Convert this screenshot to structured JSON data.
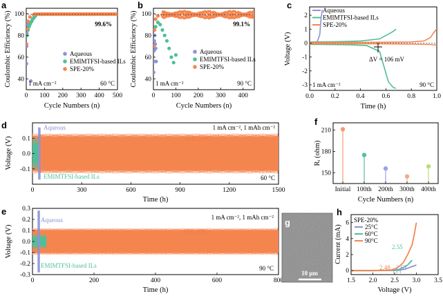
{
  "colors": {
    "aqueous": "#8b93d6",
    "ils": "#4fbf97",
    "spe": "#f5854f",
    "spe_dark": "#f07a3f",
    "bar_initial": "#f39a74",
    "bar_100": "#55c299",
    "bar_200": "#9aa3e6",
    "bar_300": "#f4a98a",
    "bar_400": "#b8de7a"
  },
  "panel_letters": {
    "a": "a",
    "b": "b",
    "c": "c",
    "d": "d",
    "e": "e",
    "f": "f",
    "g": "g",
    "h": "h"
  },
  "chart_data": [
    {
      "id": "a",
      "type": "scatter",
      "xlabel": "Cycle Numbers (n)",
      "ylabel": "Coulombic Efficiency (%)",
      "xlim": [
        0,
        500
      ],
      "ylim": [
        30,
        105
      ],
      "xticks": [
        0,
        100,
        200,
        300,
        400,
        500
      ],
      "yticks": [
        40,
        60,
        80,
        100
      ],
      "annotations": {
        "efficiency": "99.6%",
        "current": "1 mA cm⁻²",
        "temp": "60 °C"
      },
      "legend": [
        "Aqueous",
        "EMIMTFSI-based ILs",
        "SPE-20%"
      ],
      "series": [
        {
          "name": "Aqueous",
          "x": [
            1,
            2,
            3,
            5,
            8,
            12,
            18,
            25
          ],
          "y": [
            54,
            70,
            82,
            90,
            93,
            88,
            92,
            38
          ]
        },
        {
          "name": "EMIMTFSI-based ILs",
          "x": [
            5,
            10,
            15,
            20,
            25,
            30,
            35,
            40,
            45,
            50
          ],
          "y": [
            80,
            85,
            88,
            90,
            92,
            93,
            95,
            96,
            97,
            98
          ]
        },
        {
          "name": "SPE-20%",
          "x": [
            2,
            5,
            10,
            20,
            40,
            80,
            150,
            250,
            350,
            450,
            500
          ],
          "y": [
            72,
            86,
            93,
            97,
            99,
            99.5,
            99.6,
            99.6,
            99.6,
            99.6,
            99.6
          ]
        }
      ]
    },
    {
      "id": "b",
      "type": "scatter",
      "xlabel": "Cycle Numbers (n)",
      "ylabel": "Coulombic Efficiency (%)",
      "xlim": [
        0,
        450
      ],
      "ylim": [
        30,
        105
      ],
      "xticks": [
        0,
        100,
        200,
        300,
        400
      ],
      "yticks": [
        40,
        60,
        80,
        100
      ],
      "annotations": {
        "efficiency": "99.1%",
        "current": "1 mA cm⁻²",
        "temp": "90 °C"
      },
      "legend": [
        "Aqueous",
        "EMIMTFSI-based ILs",
        "SPE-20%"
      ],
      "series": [
        {
          "name": "Aqueous",
          "x": [
            1,
            2,
            3,
            4,
            6,
            8,
            10,
            12
          ],
          "y": [
            46,
            56,
            66,
            75,
            80,
            72,
            68,
            56
          ]
        },
        {
          "name": "EMIMTFSI-based ILs",
          "x": [
            10,
            20,
            30,
            40,
            50,
            60,
            70,
            80,
            90,
            100
          ],
          "y": [
            88,
            92,
            90,
            85,
            80,
            75,
            68,
            60,
            55,
            62
          ]
        },
        {
          "name": "SPE-20%",
          "x": [
            2,
            5,
            10,
            20,
            40,
            80,
            150,
            250,
            350,
            450
          ],
          "y": [
            70,
            85,
            95,
            98,
            99,
            99.2,
            99.1,
            99.1,
            99.1,
            99.1
          ]
        }
      ]
    },
    {
      "id": "c",
      "type": "line",
      "xlabel": "Time (h)",
      "ylabel": "Voltage (V)",
      "xlim": [
        0,
        1.0
      ],
      "ylim": [
        -3.4,
        2.6
      ],
      "xticks": [
        0.0,
        0.2,
        0.4,
        0.6,
        0.8,
        1.0
      ],
      "yticks": [
        -3,
        -2,
        -1,
        0,
        1,
        2
      ],
      "annotations": {
        "dv": "ΔV = 106 mV",
        "current": "1 mA cm⁻²",
        "temp": "90 °C"
      },
      "legend": [
        "Aqueous",
        "EMIMTFSI-based ILs",
        "SPE-20%"
      ],
      "series": [
        {
          "name": "Aqueous",
          "x": [
            0,
            0.03,
            0.06,
            0.08,
            0.09,
            0.1
          ],
          "y": [
            0,
            0.05,
            0.1,
            0.6,
            1.8,
            2.4
          ]
        },
        {
          "name": "EMIMTFSI-based ILs",
          "x": [
            0,
            0.1,
            0.3,
            0.45,
            0.55,
            0.62,
            0.66,
            0.68
          ],
          "y": [
            -0.1,
            -0.1,
            -0.12,
            -0.18,
            -0.6,
            -2.8,
            -3.2,
            -3.25
          ]
        },
        {
          "name": "EMIMTFSI-based ILs charge",
          "x": [
            0,
            0.2,
            0.4,
            0.55,
            0.65,
            0.68
          ],
          "y": [
            0.08,
            0.1,
            0.15,
            0.3,
            0.8,
            1.0
          ]
        },
        {
          "name": "SPE-20%",
          "x": [
            0,
            0.2,
            0.4,
            0.6,
            0.8,
            0.9,
            0.95,
            0.98,
            1.0
          ],
          "y": [
            0.05,
            0.05,
            0.05,
            0.06,
            0.08,
            0.15,
            0.4,
            0.8,
            1.0
          ]
        },
        {
          "name": "SPE-20% discharge",
          "x": [
            0,
            0.2,
            0.4,
            0.6,
            0.8,
            0.95,
            1.0
          ],
          "y": [
            -0.05,
            -0.05,
            -0.05,
            -0.06,
            -0.08,
            -0.1,
            -0.15
          ]
        }
      ]
    },
    {
      "id": "d",
      "type": "area",
      "xlabel": "Time (h)",
      "ylabel": "Voltage (V)",
      "xlim": [
        0,
        1500
      ],
      "ylim": [
        -0.2,
        0.2
      ],
      "xticks": [
        0,
        300,
        600,
        900,
        1200,
        1500
      ],
      "yticks": [
        -0.1,
        0.0,
        0.1
      ],
      "annotations": {
        "aqueous": "Aqueous",
        "ils": "EMIMTFSI-based ILs",
        "spe": "SPE-20%",
        "cond": "1 mA cm⁻², 1 mAh cm⁻²",
        "temp": "60 °C"
      },
      "series": [
        {
          "name": "Aqueous",
          "x_end": 45,
          "amplitude": 0.17
        },
        {
          "name": "EMIMTFSI-based ILs",
          "x_end": 35,
          "amplitude": 0.1
        },
        {
          "name": "SPE-20%",
          "x_end": 1500,
          "amplitude": 0.13
        }
      ]
    },
    {
      "id": "e",
      "type": "area",
      "xlabel": "Time (h)",
      "ylabel": "Voltage (V)",
      "xlim": [
        0,
        800
      ],
      "ylim": [
        -0.3,
        0.3
      ],
      "xticks": [
        0,
        200,
        400,
        600,
        800
      ],
      "yticks": [
        -0.3,
        -0.2,
        -0.1,
        0.0,
        0.1,
        0.2,
        0.3
      ],
      "annotations": {
        "aqueous": "Aqueous",
        "ils": "EMIMTFSI-based ILs",
        "spe": "SPE-20%",
        "cond": "1 mA cm⁻², 1 mAh cm⁻²",
        "temp": "90 °C"
      },
      "series": [
        {
          "name": "Aqueous",
          "x_end": 22,
          "amplitude": 0.28
        },
        {
          "name": "EMIMTFSI-based ILs",
          "x_end": 45,
          "amplitude": 0.06
        },
        {
          "name": "SPE-20%",
          "x_end": 800,
          "amplitude": 0.12
        }
      ]
    },
    {
      "id": "f",
      "type": "bar",
      "xlabel": "Cycle Numbers (n)",
      "ylabel": "Rᵢ (ohm)",
      "ylim": [
        135,
        220
      ],
      "yticks": [
        150,
        180,
        210
      ],
      "categories": [
        "Initial",
        "100th",
        "200th",
        "300th",
        "400th"
      ],
      "values": [
        211,
        175,
        156,
        145,
        159
      ]
    },
    {
      "id": "h",
      "type": "line",
      "xlabel": "Voltage (V)",
      "ylabel": "Current (mA)",
      "xlim": [
        1.5,
        3.5
      ],
      "ylim": [
        -0.5,
        7
      ],
      "xticks": [
        1.5,
        2.0,
        2.5,
        3.0,
        3.5
      ],
      "yticks": [
        0,
        2,
        4,
        6
      ],
      "legend_title": "SPE-20%",
      "legend": [
        "25°C",
        "60°C",
        "90°C"
      ],
      "annotations": {
        "v25": "2.63",
        "v60": "2.55",
        "v90": "2.48"
      },
      "series": [
        {
          "name": "25°C",
          "x": [
            1.5,
            2.0,
            2.5,
            2.6,
            2.7,
            2.8,
            2.9,
            3.0
          ],
          "y": [
            0,
            0,
            0.02,
            0.05,
            0.15,
            0.3,
            0.5,
            0.7
          ]
        },
        {
          "name": "60°C",
          "x": [
            1.5,
            2.0,
            2.5,
            2.6,
            2.7,
            2.8,
            2.85,
            2.9
          ],
          "y": [
            0,
            0,
            0.05,
            0.15,
            0.4,
            0.7,
            1.0,
            1.3
          ]
        },
        {
          "name": "90°C",
          "x": [
            1.5,
            2.0,
            2.4,
            2.5,
            2.6,
            2.7,
            2.8,
            2.9,
            2.95,
            3.0
          ],
          "y": [
            0,
            0,
            0.05,
            0.2,
            0.5,
            1.0,
            2.0,
            3.2,
            4.5,
            6.0
          ]
        }
      ]
    }
  ],
  "panel_g": {
    "scale_bar": "10 μm"
  }
}
